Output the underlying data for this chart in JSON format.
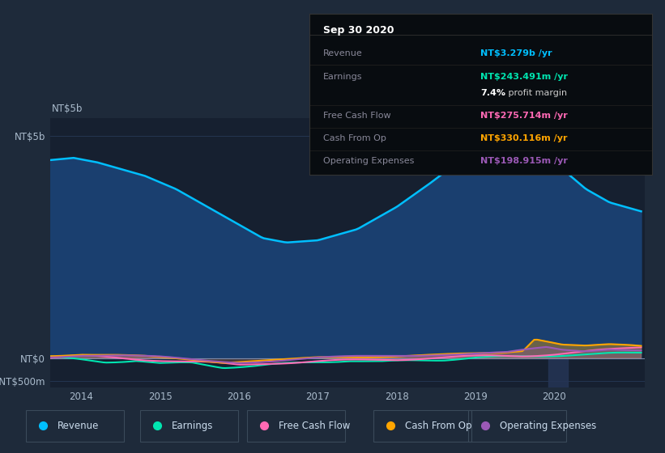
{
  "bg_color": "#1e2a3a",
  "plot_bg_color": "#162030",
  "revenue_color": "#00bfff",
  "revenue_fill": "#1a3f6f",
  "earnings_color": "#00e5b0",
  "fcf_color": "#ff69b4",
  "cashop_color": "#ffa500",
  "opex_color": "#9b59b6",
  "legend_items": [
    {
      "label": "Revenue",
      "color": "#00bfff"
    },
    {
      "label": "Earnings",
      "color": "#00e5b0"
    },
    {
      "label": "Free Cash Flow",
      "color": "#ff69b4"
    },
    {
      "label": "Cash From Op",
      "color": "#ffa500"
    },
    {
      "label": "Operating Expenses",
      "color": "#9b59b6"
    }
  ],
  "tooltip_bg": "#080c10",
  "tooltip_border": "#333333",
  "tooltip_date": "Sep 30 2020",
  "tooltip_rows": [
    {
      "label": "Revenue",
      "value": "NT$3.279b /yr",
      "color": "#00bfff",
      "extra": null
    },
    {
      "label": "Earnings",
      "value": "NT$243.491m /yr",
      "color": "#00e5b0",
      "extra": null
    },
    {
      "label": "",
      "value": "7.4%",
      "color": "#ffffff",
      "extra": " profit margin"
    },
    {
      "label": "Free Cash Flow",
      "value": "NT$275.714m /yr",
      "color": "#ff69b4",
      "extra": null
    },
    {
      "label": "Cash From Op",
      "value": "NT$330.116m /yr",
      "color": "#ffa500",
      "extra": null
    },
    {
      "label": "Operating Expenses",
      "value": "NT$198.915m /yr",
      "color": "#9b59b6",
      "extra": null
    }
  ],
  "ytick_vals": [
    -500000000,
    0,
    5000000000
  ],
  "ytick_labels": [
    "-NT$500m",
    "NT$0",
    "NT$5b"
  ],
  "xtick_years": [
    2014,
    2015,
    2016,
    2017,
    2018,
    2019,
    2020
  ],
  "ylim_min": -650000000,
  "ylim_max": 5400000000,
  "xlim_min": 2013.6,
  "xlim_max": 2021.15
}
